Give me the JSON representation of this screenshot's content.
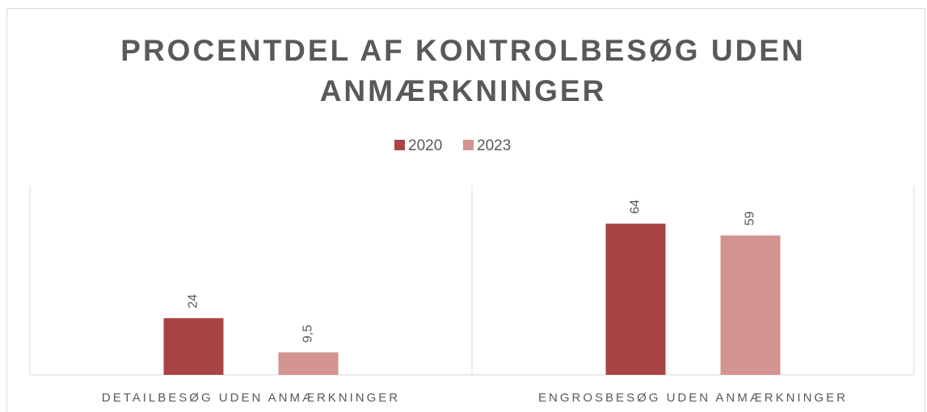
{
  "chart_data": {
    "type": "bar",
    "title": "PROCENTDEL AF KONTROLBESØG UDEN ANMÆRKNINGER",
    "categories": [
      "DETAILBESØG UDEN ANMÆRKNINGER",
      "ENGROSBESØG UDEN ANMÆRKNINGER"
    ],
    "series": [
      {
        "name": "2020",
        "color": "#a84443",
        "values": [
          24,
          64
        ],
        "value_labels": [
          "24",
          "64"
        ]
      },
      {
        "name": "2023",
        "color": "#d39391",
        "values": [
          9.5,
          59
        ],
        "value_labels": [
          "9,5",
          "59"
        ]
      }
    ],
    "ylim": [
      0,
      80
    ],
    "legend": "top"
  }
}
